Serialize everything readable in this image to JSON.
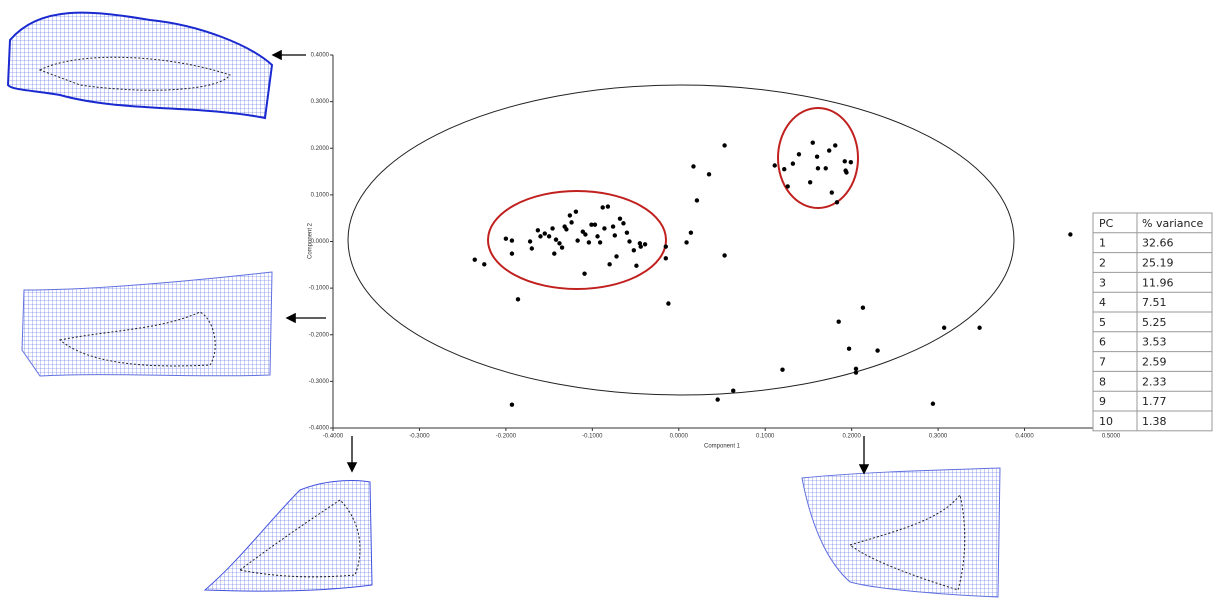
{
  "chart_data": {
    "type": "scatter",
    "xlabel": "Component 1",
    "ylabel": "Component 2",
    "xlim": [
      -0.4,
      0.5
    ],
    "ylim": [
      -0.4,
      0.4
    ],
    "xticks": [
      {
        "value": -0.4,
        "label": "-0.4000"
      },
      {
        "value": -0.3,
        "label": "-0.3000"
      },
      {
        "value": -0.2,
        "label": "-0.2000"
      },
      {
        "value": -0.1,
        "label": "-0.1000"
      },
      {
        "value": 0,
        "label": "0.0000"
      },
      {
        "value": 0.1,
        "label": "0.1000"
      },
      {
        "value": 0.2,
        "label": "0.2000"
      },
      {
        "value": 0.3,
        "label": "0.3000"
      },
      {
        "value": 0.4,
        "label": "0.4000"
      },
      {
        "value": 0.5,
        "label": "0.5000"
      }
    ],
    "yticks": [
      {
        "value": -0.4,
        "label": "-0.4000"
      },
      {
        "value": -0.3,
        "label": "-0.3000"
      },
      {
        "value": -0.2,
        "label": "-0.2000"
      },
      {
        "value": -0.1,
        "label": "-0.1000"
      },
      {
        "value": 0,
        "label": "0.0000"
      },
      {
        "value": 0.1,
        "label": "0.1000"
      },
      {
        "value": 0.2,
        "label": "0.2000"
      },
      {
        "value": 0.3,
        "label": "0.3000"
      },
      {
        "value": 0.4,
        "label": "0.4000"
      }
    ],
    "color": "#000000",
    "x": [
      -0.236,
      -0.225,
      -0.2,
      -0.193,
      -0.186,
      -0.193,
      -0.172,
      -0.17,
      -0.163,
      -0.16,
      -0.155,
      -0.15,
      -0.146,
      -0.142,
      -0.135,
      -0.132,
      -0.13,
      -0.126,
      -0.124,
      -0.119,
      -0.117,
      -0.111,
      -0.108,
      -0.104,
      -0.101,
      -0.097,
      -0.094,
      -0.091,
      -0.088,
      -0.086,
      -0.082,
      -0.08,
      -0.076,
      -0.074,
      -0.072,
      -0.068,
      -0.064,
      -0.06,
      -0.057,
      -0.052,
      -0.049,
      -0.045,
      -0.044,
      -0.039,
      -0.015,
      -0.015,
      -0.109,
      -0.144,
      -0.138,
      -0.012,
      0.009,
      0.014,
      0.017,
      0.021,
      0.035,
      0.053,
      0.053,
      -0.193,
      0.045,
      0.063,
      0.12,
      0.185,
      0.197,
      0.205,
      0.205,
      0.213,
      0.23,
      0.294,
      0.307,
      0.348,
      0.453,
      0.111,
      0.122,
      0.126,
      0.132,
      0.139,
      0.152,
      0.155,
      0.16,
      0.161,
      0.17,
      0.174,
      0.177,
      0.181,
      0.183,
      0.192,
      0.193,
      0.194,
      0.199
    ],
    "y": [
      -0.039,
      -0.049,
      0.006,
      0.002,
      -0.124,
      -0.026,
      0,
      -0.015,
      0.024,
      0.011,
      0.017,
      0.011,
      0.028,
      0.004,
      -0.013,
      0.032,
      0.026,
      0.056,
      0.041,
      0.064,
      0.002,
      0.021,
      0.015,
      -0.002,
      0.036,
      0.036,
      0.011,
      -0.002,
      0.073,
      0.028,
      0.075,
      -0.049,
      0.032,
      0.013,
      -0.032,
      0.049,
      0.039,
      0.019,
      0,
      -0.019,
      -0.052,
      -0.004,
      -0.011,
      -0.006,
      -0.011,
      -0.036,
      -0.069,
      -0.026,
      -0.004,
      -0.133,
      -0.002,
      0.019,
      0.161,
      0.088,
      0.144,
      0.206,
      -0.03,
      -0.35,
      -0.339,
      -0.32,
      -0.275,
      -0.172,
      -0.23,
      -0.273,
      -0.281,
      -0.142,
      -0.234,
      -0.348,
      -0.185,
      -0.185,
      0.015,
      0.163,
      0.155,
      0.118,
      0.167,
      0.187,
      0.127,
      0.212,
      0.182,
      0.157,
      0.157,
      0.195,
      0.105,
      0.206,
      0.084,
      0.172,
      0.152,
      0.148,
      0.17
    ]
  },
  "table": {
    "header": [
      "PC",
      "% variance"
    ],
    "rows": [
      [
        1,
        32.66
      ],
      [
        2,
        25.19
      ],
      [
        3,
        11.96
      ],
      [
        4,
        7.51
      ],
      [
        5,
        5.25
      ],
      [
        6,
        3.53
      ],
      [
        7,
        2.59
      ],
      [
        8,
        2.33
      ],
      [
        9,
        1.77
      ],
      [
        10,
        1.38
      ]
    ]
  }
}
